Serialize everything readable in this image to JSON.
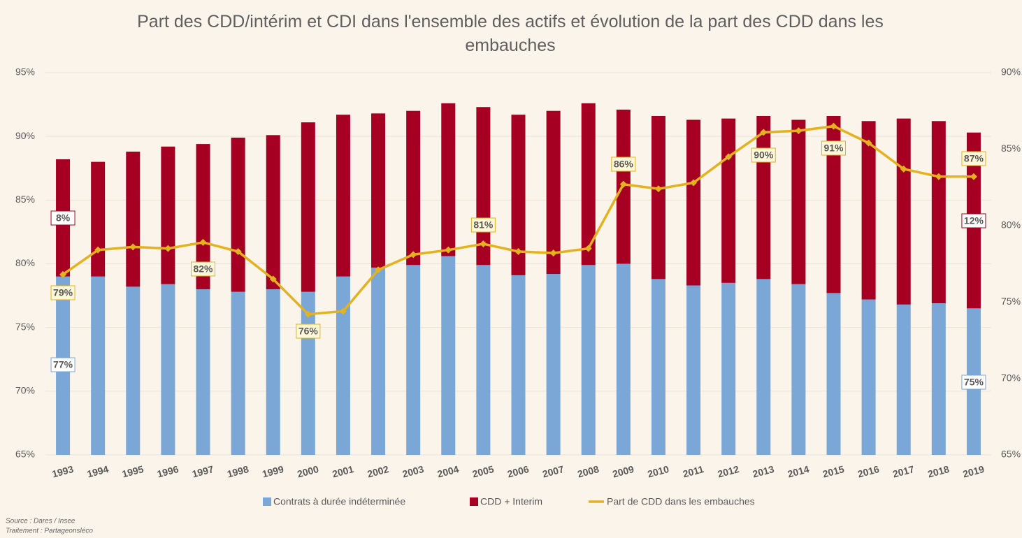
{
  "chart_data": {
    "type": "bar",
    "title": "Part des CDD/intérim et CDI dans l'ensemble des actifs et évolution de la part des CDD dans les embauches",
    "categories": [
      "1993",
      "1994",
      "1995",
      "1996",
      "1997",
      "1998",
      "1999",
      "2000",
      "2001",
      "2002",
      "2003",
      "2004",
      "2005",
      "2006",
      "2007",
      "2008",
      "2009",
      "2010",
      "2011",
      "2012",
      "2013",
      "2014",
      "2015",
      "2016",
      "2017",
      "2018",
      "2019"
    ],
    "series": [
      {
        "name": "Contrats à durée indéterminée",
        "color": "#7ba7d7",
        "stacked": true,
        "values": [
          79.0,
          79.0,
          78.2,
          78.4,
          78.0,
          77.8,
          78.0,
          77.8,
          79.0,
          79.7,
          79.9,
          80.6,
          79.9,
          79.1,
          79.2,
          79.9,
          80.0,
          78.8,
          78.3,
          78.5,
          78.8,
          78.4,
          77.7,
          77.2,
          76.8,
          76.9,
          76.5
        ]
      },
      {
        "name": "CDD + Interim",
        "color": "#a50021",
        "stacked": true,
        "values": [
          9.2,
          9.0,
          10.6,
          10.8,
          11.4,
          12.1,
          12.1,
          13.3,
          12.7,
          12.1,
          12.1,
          12.0,
          12.4,
          12.6,
          12.8,
          12.7,
          12.1,
          12.8,
          13.0,
          12.9,
          12.8,
          12.9,
          13.9,
          14.0,
          14.6,
          14.3,
          13.8
        ]
      },
      {
        "name": "Part de CDD dans les embauches",
        "color": "#e3b21e",
        "type": "line",
        "axis": "y2",
        "values": [
          76.8,
          78.4,
          78.6,
          78.5,
          78.9,
          78.3,
          76.5,
          74.2,
          74.4,
          77.1,
          78.1,
          78.4,
          78.8,
          78.3,
          78.2,
          78.5,
          82.7,
          82.4,
          82.8,
          84.5,
          86.1,
          86.2,
          86.5,
          85.4,
          83.7,
          83.2,
          83.2
        ]
      }
    ],
    "annotations": [
      "77%",
      "8%",
      "75%",
      "12%",
      "79%",
      "82%",
      "76%",
      "81%",
      "86%",
      "90%",
      "91%",
      "87%"
    ],
    "ylim": [
      65,
      95
    ],
    "yticks": [
      {
        "value": 65,
        "label": "65%"
      },
      {
        "value": 70,
        "label": "70%"
      },
      {
        "value": 75,
        "label": "75%"
      },
      {
        "value": 80,
        "label": "80%"
      },
      {
        "value": 85,
        "label": "85%"
      },
      {
        "value": 90,
        "label": "90%"
      },
      {
        "value": 95,
        "label": "95%"
      }
    ],
    "y2lim": [
      65,
      90
    ],
    "y2ticks": [
      {
        "value": 65,
        "label": "65%"
      },
      {
        "value": 70,
        "label": "70%"
      },
      {
        "value": 75,
        "label": "75%"
      },
      {
        "value": 80,
        "label": "80%"
      },
      {
        "value": 85,
        "label": "85%"
      },
      {
        "value": 90,
        "label": "90%"
      }
    ],
    "grid": true,
    "legend": "bottom",
    "source": "Source : Dares / Insee",
    "credit": "Traitement : Partageonsléco"
  }
}
